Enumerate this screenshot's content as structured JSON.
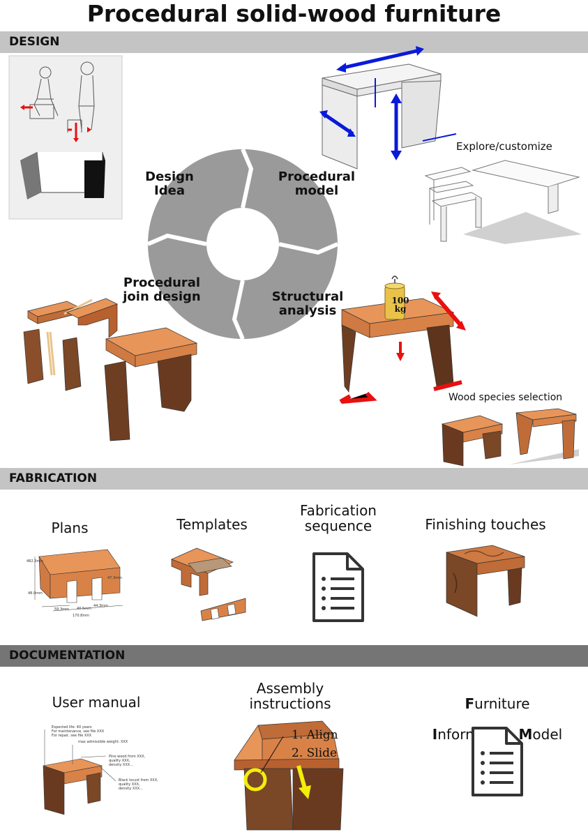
{
  "title": "Procedural solid-wood furniture",
  "sections": {
    "design": "DESIGN",
    "fabrication": "FABRICATION",
    "documentation": "DOCUMENTATION"
  },
  "cycle": {
    "design_idea": "Design\nIdea",
    "procedural_model": "Procedural\nmodel",
    "structural_analysis": "Structural\nanalysis",
    "procedural_join_design": "Procedural\njoin design"
  },
  "design_labels": {
    "explore": "Explore/customize",
    "wood_species": "Wood species selection",
    "weight_number": "100",
    "weight_unit": "kg"
  },
  "fabrication_items": {
    "plans": "Plans",
    "templates": "Templates",
    "sequence": "Fabrication\nsequence",
    "finishing": "Finishing touches"
  },
  "plan_dims": [
    "482.3mm",
    "48.0mm",
    "59.3mm",
    "40.5mm",
    "44.3mm",
    "170.8mm",
    "47.3mm"
  ],
  "documentation_items": {
    "user_manual": "User manual",
    "assembly": "Assembly\ninstructions",
    "fim": {
      "a": "F",
      "b": "urniture",
      "c": "I",
      "d": "nformation ",
      "e": "M",
      "f": "odel"
    }
  },
  "manual_notes": {
    "n1": "Expected life: 40 years\nFor maintenance, see file XXX\nFor repair, see file XXX",
    "n2": "max admissible weight: XXX",
    "n3": "Pine wood from XXX,\nquality XXX,\ndensity XXX...",
    "n4": "Black locust from XXX,\nquality XXX,\ndensity XXX..."
  },
  "assembly_steps": {
    "s1": "1. Align",
    "s2": "2. Slide"
  },
  "colors": {
    "wood_light": "#e8955a",
    "wood_mid": "#cf7a43",
    "wood_dark": "#7a4727",
    "cycle_gray": "#9a9a9a",
    "arrow_blue": "#0a1ad8",
    "arrow_red": "#e81010",
    "highlight": "#f2ee0a"
  }
}
